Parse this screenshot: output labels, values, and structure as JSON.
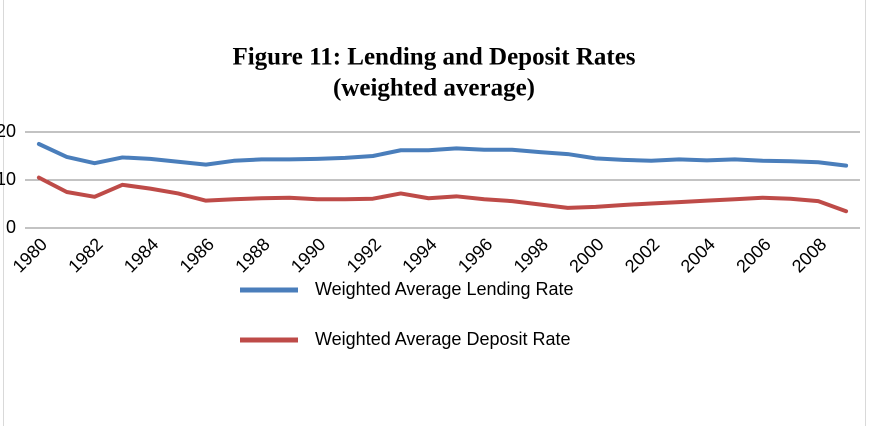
{
  "chart_data": {
    "type": "line",
    "title": "Figure 11: Lending and Deposit Rates",
    "subtitle": "(weighted average)",
    "categories": [
      "1980",
      null,
      "1982",
      null,
      "1984",
      null,
      "1986",
      null,
      "1988",
      null,
      "1990",
      null,
      "1992",
      null,
      "1994",
      null,
      "1996",
      null,
      "1998",
      null,
      "2000",
      null,
      "2002",
      null,
      "2004",
      null,
      "2006",
      null,
      "2008",
      null
    ],
    "series": [
      {
        "name": "Weighted Average Lending Rate",
        "color": "#4a7ebb",
        "values": [
          17.5,
          14.8,
          13.5,
          14.7,
          14.4,
          13.8,
          13.2,
          14.0,
          14.3,
          14.3,
          14.4,
          14.6,
          15.0,
          16.2,
          16.2,
          16.6,
          16.3,
          16.3,
          15.8,
          15.4,
          14.5,
          14.2,
          14.0,
          14.3,
          14.1,
          14.3,
          14.0,
          13.9,
          13.7,
          13.0
        ]
      },
      {
        "name": "Weighted Average Deposit Rate",
        "color": "#be4b48",
        "values": [
          10.5,
          7.5,
          6.5,
          9.0,
          8.2,
          7.2,
          5.7,
          6.0,
          6.2,
          6.3,
          6.0,
          6.0,
          6.1,
          7.2,
          6.2,
          6.6,
          6.0,
          5.6,
          4.9,
          4.2,
          4.4,
          4.8,
          5.1,
          5.4,
          5.7,
          6.0,
          6.3,
          6.1,
          5.6,
          3.5
        ]
      }
    ],
    "ylim": [
      0,
      20
    ],
    "yticks": [
      0,
      10,
      20
    ],
    "grid": true,
    "legend": "bottom"
  }
}
